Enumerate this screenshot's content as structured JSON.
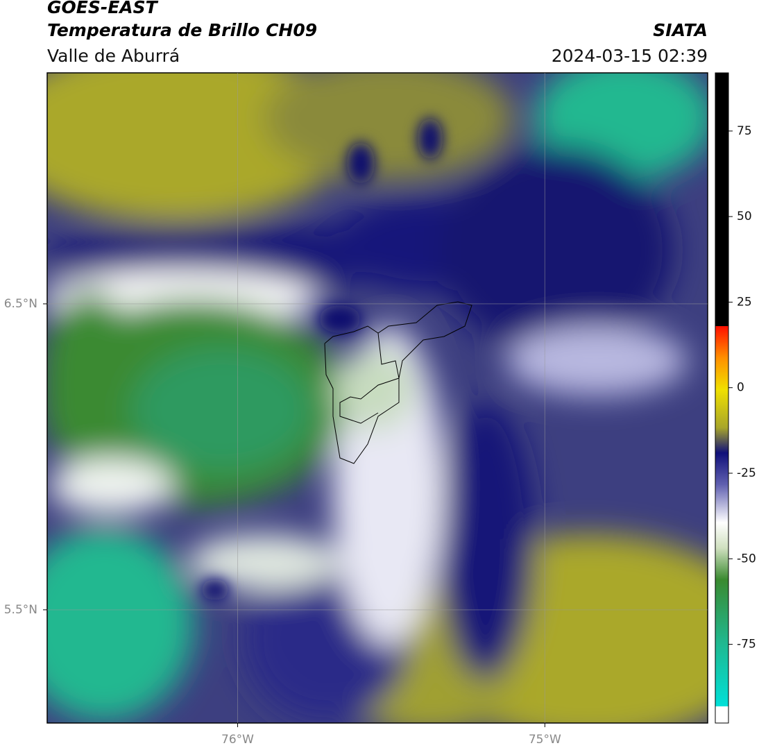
{
  "chart_data": {
    "type": "map",
    "title": "GOES-EAST",
    "subtitle": "Temperatura de Brillo CH09",
    "region": "Valle de Aburrá",
    "source": "SIATA",
    "timestamp": "2024-03-15 02:39",
    "xlim": [
      -76.62,
      -74.47
    ],
    "ylim": [
      5.13,
      7.255
    ],
    "xticks": [
      {
        "value": -76,
        "label": "76°W"
      },
      {
        "value": -75,
        "label": "75°W"
      }
    ],
    "yticks": [
      {
        "value": 5.5,
        "label": "5.5°N"
      },
      {
        "value": 6.5,
        "label": "6.5°N"
      }
    ],
    "grid": true,
    "colorbar": {
      "lim": [
        -98,
        92
      ],
      "ticks": [
        -75,
        -50,
        -25,
        0,
        25,
        50,
        75
      ]
    }
  }
}
